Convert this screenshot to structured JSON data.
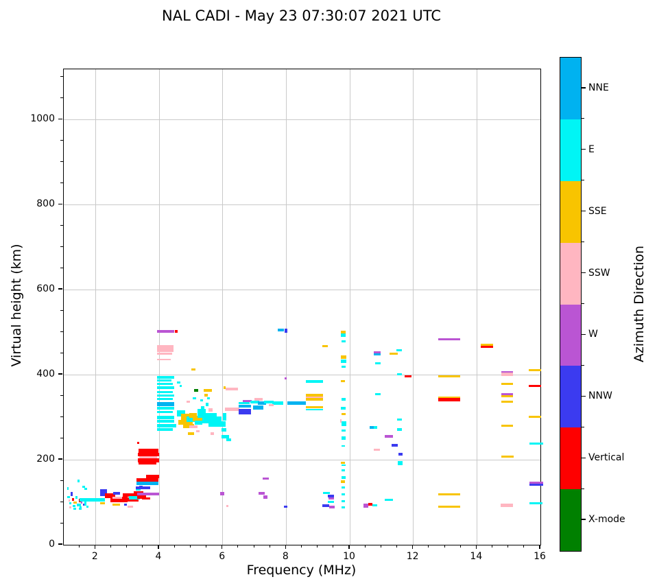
{
  "title": "NAL CADI - May 23 07:30:07 2021 UTC",
  "chart_data": {
    "type": "scatter",
    "title": "NAL CADI - May 23 07:30:07 2021 UTC",
    "xlabel": "Frequency (MHz)",
    "ylabel": "Virtual height (km)",
    "xlim": [
      1,
      16
    ],
    "ylim": [
      0,
      1118
    ],
    "xticks": [
      2,
      4,
      6,
      8,
      10,
      12,
      14,
      16
    ],
    "yticks": [
      0,
      200,
      400,
      600,
      800,
      1000
    ],
    "x_minor_step": 0.5,
    "y_minor_step": 50,
    "grid": true,
    "grid_color": "#c9c9c9",
    "legend_position": "right-colorbar",
    "colorbar": {
      "label": "Azimuth Direction",
      "segments": [
        {
          "key": "NNE",
          "label": "NNE",
          "color": "#00b2f0"
        },
        {
          "key": "E",
          "label": "E",
          "color": "#00f5f5"
        },
        {
          "key": "SSE",
          "label": "SSE",
          "color": "#f8c400"
        },
        {
          "key": "SSW",
          "label": "SSW",
          "color": "#ffb6c1"
        },
        {
          "key": "W",
          "label": "W",
          "color": "#ba55d3"
        },
        {
          "key": "NNW",
          "label": "NNW",
          "color": "#3b3bf0"
        },
        {
          "key": "V",
          "label": "Vertical",
          "color": "#fe0000"
        },
        {
          "key": "X",
          "label": "X-mode",
          "color": "#008000"
        }
      ]
    },
    "points_format": [
      "freq_MHz_left",
      "height_km_center",
      "width_MHz",
      "thickness_km",
      "direction_key"
    ],
    "points": [
      [
        1.1,
        132,
        0.06,
        6,
        "E"
      ],
      [
        1.43,
        150,
        0.07,
        6,
        "E"
      ],
      [
        1.58,
        137,
        0.1,
        5,
        "E"
      ],
      [
        1.65,
        131,
        0.08,
        5,
        "E"
      ],
      [
        1.1,
        112,
        0.1,
        6,
        "E"
      ],
      [
        1.22,
        119,
        0.06,
        10,
        "NNW"
      ],
      [
        1.26,
        107,
        0.06,
        6,
        "V"
      ],
      [
        1.31,
        99,
        0.1,
        6,
        "SSE"
      ],
      [
        1.37,
        111,
        0.06,
        6,
        "E"
      ],
      [
        1.18,
        97,
        0.06,
        5,
        "E"
      ],
      [
        1.28,
        91,
        0.08,
        5,
        "E"
      ],
      [
        1.42,
        94,
        0.12,
        6,
        "E"
      ],
      [
        1.47,
        104,
        0.08,
        8,
        "V"
      ],
      [
        1.53,
        99,
        0.06,
        5,
        "W"
      ],
      [
        1.15,
        104,
        0.05,
        5,
        "SSW"
      ],
      [
        1.5,
        88,
        0.06,
        5,
        "E"
      ],
      [
        1.6,
        94,
        0.05,
        5,
        "NNW"
      ],
      [
        1.65,
        99,
        0.06,
        13,
        "E"
      ],
      [
        1.72,
        89,
        0.05,
        5,
        "E"
      ],
      [
        1.5,
        105,
        0.8,
        8,
        "E"
      ],
      [
        2.14,
        97,
        0.16,
        5,
        "SSE"
      ],
      [
        1.3,
        84,
        0.08,
        5,
        "E"
      ],
      [
        1.47,
        84,
        0.1,
        5,
        "E"
      ],
      [
        1.18,
        88,
        0.05,
        5,
        "SSW"
      ],
      [
        2.15,
        123,
        0.2,
        16,
        "NNW"
      ],
      [
        2.3,
        115,
        0.32,
        11,
        "V"
      ],
      [
        2.46,
        106,
        0.55,
        13,
        "V"
      ],
      [
        2.53,
        110,
        0.3,
        5,
        "SSW"
      ],
      [
        2.56,
        121,
        0.22,
        8,
        "NNW"
      ],
      [
        2.86,
        117,
        0.45,
        8,
        "V"
      ],
      [
        2.96,
        107,
        0.4,
        10,
        "V"
      ],
      [
        3.06,
        111,
        0.33,
        8,
        "E"
      ],
      [
        3.01,
        90,
        0.16,
        5,
        "SSW"
      ],
      [
        2.91,
        94,
        0.07,
        5,
        "NNW"
      ],
      [
        2.53,
        94,
        0.25,
        5,
        "SSE"
      ],
      [
        3.21,
        121,
        0.3,
        11,
        "V"
      ],
      [
        3.31,
        112,
        0.28,
        8,
        "V"
      ],
      [
        3.26,
        130,
        0.15,
        6,
        "E"
      ],
      [
        3.37,
        136,
        0.12,
        6,
        "NNW"
      ],
      [
        3.28,
        153,
        0.7,
        8,
        "V"
      ],
      [
        3.28,
        145,
        0.7,
        8,
        "NNE"
      ],
      [
        3.59,
        160,
        0.42,
        8,
        "V"
      ],
      [
        3.27,
        134,
        0.45,
        6,
        "NNW"
      ],
      [
        3.3,
        119,
        0.7,
        6,
        "W"
      ],
      [
        3.47,
        109,
        0.25,
        6,
        "V"
      ],
      [
        3.35,
        221,
        0.62,
        11,
        "V"
      ],
      [
        3.33,
        212,
        0.66,
        8,
        "V"
      ],
      [
        3.38,
        206,
        0.55,
        5,
        "SSW"
      ],
      [
        3.33,
        199,
        0.66,
        10,
        "V"
      ],
      [
        3.36,
        191,
        0.55,
        6,
        "V"
      ],
      [
        3.31,
        240,
        0.06,
        5,
        "V"
      ],
      [
        3.93,
        502,
        0.55,
        6,
        "W"
      ],
      [
        4.5,
        502,
        0.09,
        6,
        "V"
      ],
      [
        3.93,
        462,
        0.52,
        16,
        "SSW"
      ],
      [
        3.93,
        449,
        0.48,
        5,
        "SSW"
      ],
      [
        3.93,
        436,
        0.44,
        4,
        "SSW"
      ],
      [
        3.93,
        394,
        0.55,
        6,
        "E"
      ],
      [
        3.93,
        386,
        0.45,
        4,
        "E"
      ],
      [
        3.93,
        378,
        0.5,
        4,
        "E"
      ],
      [
        3.93,
        369,
        0.55,
        6,
        "E"
      ],
      [
        3.93,
        359,
        0.5,
        4,
        "E"
      ],
      [
        3.93,
        351,
        0.55,
        6,
        "E"
      ],
      [
        3.93,
        343,
        0.5,
        4,
        "E"
      ],
      [
        3.93,
        331,
        0.55,
        9,
        "NNE"
      ],
      [
        3.93,
        321,
        0.55,
        6,
        "E"
      ],
      [
        3.93,
        312,
        0.5,
        6,
        "E"
      ],
      [
        3.93,
        300,
        0.55,
        8,
        "E"
      ],
      [
        3.93,
        290,
        0.55,
        6,
        "E"
      ],
      [
        3.93,
        280,
        0.6,
        8,
        "E"
      ],
      [
        3.93,
        271,
        0.5,
        6,
        "E"
      ],
      [
        5.02,
        412,
        0.12,
        5,
        "SSE"
      ],
      [
        4.56,
        382,
        0.1,
        5,
        "E"
      ],
      [
        4.64,
        374,
        0.08,
        5,
        "E"
      ],
      [
        4.56,
        309,
        0.25,
        14,
        "E"
      ],
      [
        4.7,
        299,
        0.3,
        18,
        "SSE"
      ],
      [
        4.6,
        288,
        0.45,
        12,
        "SSE"
      ],
      [
        4.86,
        295,
        0.3,
        12,
        "E"
      ],
      [
        4.96,
        304,
        0.22,
        12,
        "SSE"
      ],
      [
        5.06,
        297,
        0.3,
        14,
        "SSE"
      ],
      [
        5.12,
        287,
        0.25,
        9,
        "E"
      ],
      [
        4.76,
        279,
        0.35,
        9,
        "SSE"
      ],
      [
        4.96,
        277,
        0.25,
        7,
        "SSW"
      ],
      [
        5.21,
        309,
        0.25,
        20,
        "E"
      ],
      [
        5.36,
        298,
        0.45,
        24,
        "E"
      ],
      [
        5.56,
        287,
        0.35,
        18,
        "E"
      ],
      [
        5.31,
        322,
        0.12,
        9,
        "E"
      ],
      [
        5.46,
        330,
        0.1,
        7,
        "E"
      ],
      [
        5.56,
        317,
        0.12,
        7,
        "SSW"
      ],
      [
        5.66,
        299,
        0.15,
        12,
        "E"
      ],
      [
        5.76,
        294,
        0.2,
        15,
        "E"
      ],
      [
        5.91,
        284,
        0.18,
        12,
        "E"
      ],
      [
        6.01,
        301,
        0.1,
        18,
        "E"
      ],
      [
        5.96,
        270,
        0.15,
        9,
        "E"
      ],
      [
        5.16,
        267,
        0.12,
        6,
        "SSW"
      ],
      [
        4.91,
        261,
        0.2,
        7,
        "SSE"
      ],
      [
        5.61,
        261,
        0.12,
        6,
        "SSW"
      ],
      [
        5.11,
        363,
        0.12,
        6,
        "X"
      ],
      [
        5.41,
        363,
        0.25,
        7,
        "SSE"
      ],
      [
        5.43,
        352,
        0.1,
        7,
        "SSE"
      ],
      [
        5.06,
        345,
        0.1,
        5,
        "E"
      ],
      [
        4.86,
        337,
        0.12,
        5,
        "SSW"
      ],
      [
        5.29,
        340,
        0.1,
        5,
        "E"
      ],
      [
        5.51,
        345,
        0.08,
        5,
        "E"
      ],
      [
        6.09,
        366,
        0.4,
        6,
        "SSW"
      ],
      [
        6.03,
        369,
        0.07,
        6,
        "SSE"
      ],
      [
        5.96,
        254,
        0.25,
        8,
        "E"
      ],
      [
        6.11,
        247,
        0.15,
        6,
        "E"
      ],
      [
        6.51,
        333,
        0.35,
        6,
        "E"
      ],
      [
        6.51,
        326,
        0.38,
        7,
        "NNE"
      ],
      [
        6.07,
        318,
        0.45,
        8,
        "SSW"
      ],
      [
        6.51,
        313,
        0.38,
        12,
        "NNW"
      ],
      [
        6.63,
        338,
        0.28,
        5,
        "W"
      ],
      [
        6.86,
        336,
        0.3,
        7,
        "E"
      ],
      [
        7.11,
        333,
        0.25,
        7,
        "NNE"
      ],
      [
        7.31,
        336,
        0.3,
        7,
        "E"
      ],
      [
        7.56,
        333,
        0.35,
        7,
        "E"
      ],
      [
        7.46,
        328,
        0.15,
        5,
        "SSW"
      ],
      [
        6.96,
        323,
        0.32,
        9,
        "NNE"
      ],
      [
        7.01,
        342,
        0.25,
        6,
        "SSW"
      ],
      [
        8.04,
        333,
        0.58,
        9,
        "NNE"
      ],
      [
        8.61,
        352,
        0.55,
        6,
        "SSE"
      ],
      [
        8.61,
        347,
        0.55,
        4,
        "SSW"
      ],
      [
        8.61,
        342,
        0.55,
        6,
        "SSE"
      ],
      [
        8.61,
        323,
        0.55,
        5,
        "SSE"
      ],
      [
        8.61,
        318,
        0.55,
        4,
        "E"
      ],
      [
        8.61,
        384,
        0.55,
        5,
        "E"
      ],
      [
        9.14,
        467,
        0.18,
        5,
        "SSE"
      ],
      [
        7.73,
        505,
        0.2,
        5,
        "NNE"
      ],
      [
        7.94,
        503,
        0.09,
        9,
        "NNW"
      ],
      [
        7.96,
        391,
        0.06,
        6,
        "W"
      ],
      [
        9.73,
        500,
        0.15,
        7,
        "SSE"
      ],
      [
        9.73,
        493,
        0.15,
        7,
        "E"
      ],
      [
        9.75,
        478,
        0.12,
        5,
        "E"
      ],
      [
        9.73,
        441,
        0.16,
        9,
        "SSE"
      ],
      [
        9.73,
        432,
        0.16,
        8,
        "E"
      ],
      [
        9.75,
        419,
        0.12,
        5,
        "E"
      ],
      [
        9.73,
        385,
        0.12,
        5,
        "SSE"
      ],
      [
        9.75,
        342,
        0.12,
        5,
        "E"
      ],
      [
        9.73,
        321,
        0.14,
        8,
        "E"
      ],
      [
        9.74,
        307,
        0.12,
        5,
        "SSE"
      ],
      [
        9.69,
        291,
        0.06,
        7,
        "SSW"
      ],
      [
        9.75,
        285,
        0.14,
        11,
        "E"
      ],
      [
        9.75,
        269,
        0.12,
        5,
        "E"
      ],
      [
        9.74,
        251,
        0.14,
        7,
        "E"
      ],
      [
        9.75,
        232,
        0.1,
        4,
        "E"
      ],
      [
        9.73,
        193,
        0.12,
        6,
        "SSE"
      ],
      [
        9.75,
        187,
        0.12,
        4,
        "E"
      ],
      [
        9.75,
        175,
        0.1,
        5,
        "E"
      ],
      [
        9.74,
        158,
        0.12,
        6,
        "E"
      ],
      [
        9.73,
        149,
        0.12,
        6,
        "SSE"
      ],
      [
        9.75,
        135,
        0.1,
        5,
        "E"
      ],
      [
        9.75,
        119,
        0.1,
        5,
        "E"
      ],
      [
        9.75,
        103,
        0.1,
        5,
        "E"
      ],
      [
        9.75,
        88,
        0.1,
        5,
        "E"
      ],
      [
        10.76,
        452,
        0.22,
        5,
        "W"
      ],
      [
        10.76,
        447,
        0.22,
        5,
        "NNE"
      ],
      [
        11.46,
        457,
        0.18,
        5,
        "E"
      ],
      [
        11.26,
        449,
        0.25,
        5,
        "SSE"
      ],
      [
        10.79,
        427,
        0.18,
        5,
        "E"
      ],
      [
        11.49,
        401,
        0.16,
        5,
        "E"
      ],
      [
        11.73,
        396,
        0.22,
        5,
        "V"
      ],
      [
        10.79,
        354,
        0.18,
        5,
        "E"
      ],
      [
        10.63,
        276,
        0.16,
        7,
        "NNE"
      ],
      [
        10.76,
        276,
        0.1,
        7,
        "E"
      ],
      [
        11.49,
        294,
        0.16,
        5,
        "E"
      ],
      [
        11.49,
        271,
        0.16,
        5,
        "E"
      ],
      [
        11.11,
        255,
        0.25,
        7,
        "W"
      ],
      [
        11.31,
        234,
        0.2,
        7,
        "NNW"
      ],
      [
        10.76,
        223,
        0.2,
        5,
        "SSW"
      ],
      [
        11.53,
        213,
        0.14,
        7,
        "NNW"
      ],
      [
        11.51,
        192,
        0.16,
        9,
        "E"
      ],
      [
        11.11,
        105,
        0.25,
        5,
        "E"
      ],
      [
        10.43,
        92,
        0.16,
        9,
        "W"
      ],
      [
        10.59,
        95,
        0.12,
        6,
        "V"
      ],
      [
        10.71,
        93,
        0.16,
        5,
        "E"
      ],
      [
        12.78,
        483,
        0.7,
        5,
        "W"
      ],
      [
        12.78,
        396,
        0.7,
        5,
        "SSE"
      ],
      [
        12.78,
        346,
        0.7,
        5,
        "SSE"
      ],
      [
        12.78,
        341,
        0.7,
        7,
        "V"
      ],
      [
        12.78,
        118,
        0.7,
        5,
        "SSE"
      ],
      [
        12.78,
        90,
        0.7,
        5,
        "SSE"
      ],
      [
        14.13,
        470,
        0.38,
        5,
        "SSE"
      ],
      [
        14.13,
        465,
        0.38,
        5,
        "V"
      ],
      [
        14.78,
        406,
        0.36,
        5,
        "W"
      ],
      [
        14.78,
        401,
        0.36,
        7,
        "SSW"
      ],
      [
        14.78,
        379,
        0.36,
        5,
        "SSE"
      ],
      [
        14.78,
        354,
        0.36,
        5,
        "W"
      ],
      [
        14.78,
        349,
        0.36,
        5,
        "SSE"
      ],
      [
        14.78,
        337,
        0.36,
        5,
        "SSE"
      ],
      [
        14.78,
        280,
        0.36,
        5,
        "SSE"
      ],
      [
        14.77,
        207,
        0.38,
        5,
        "SSE"
      ],
      [
        14.75,
        93,
        0.38,
        7,
        "SSW"
      ],
      [
        15.63,
        410,
        0.4,
        5,
        "SSE"
      ],
      [
        15.63,
        374,
        0.4,
        5,
        "V"
      ],
      [
        15.63,
        301,
        0.4,
        5,
        "SSE"
      ],
      [
        15.66,
        238,
        0.42,
        5,
        "E"
      ],
      [
        15.66,
        146,
        0.42,
        5,
        "W"
      ],
      [
        15.66,
        141,
        0.42,
        5,
        "NNW"
      ],
      [
        15.66,
        98,
        0.4,
        5,
        "E"
      ],
      [
        5.93,
        120,
        0.12,
        8,
        "W"
      ],
      [
        6.11,
        91,
        0.06,
        5,
        "SSW"
      ],
      [
        7.26,
        155,
        0.2,
        5,
        "W"
      ],
      [
        7.13,
        121,
        0.2,
        5,
        "W"
      ],
      [
        7.28,
        112,
        0.14,
        8,
        "W"
      ],
      [
        7.93,
        90,
        0.1,
        5,
        "NNW"
      ],
      [
        9.16,
        122,
        0.22,
        5,
        "E"
      ],
      [
        9.31,
        115,
        0.2,
        7,
        "NNW"
      ],
      [
        9.33,
        109,
        0.18,
        6,
        "W"
      ],
      [
        9.31,
        101,
        0.2,
        4,
        "E"
      ],
      [
        9.13,
        92,
        0.22,
        7,
        "NNW"
      ],
      [
        9.36,
        89,
        0.16,
        7,
        "W"
      ]
    ]
  }
}
